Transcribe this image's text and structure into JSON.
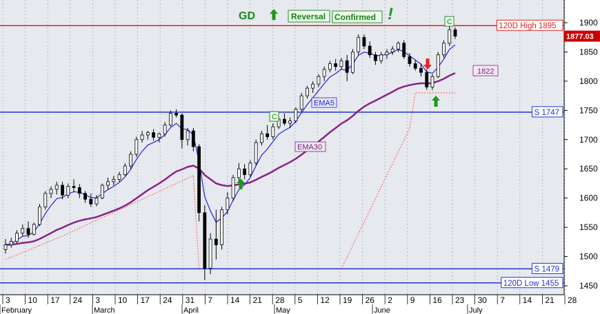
{
  "chart_data": {
    "type": "candlestick",
    "y_axis": {
      "min": 1440,
      "max": 1940,
      "ticks": [
        1450,
        1500,
        1550,
        1600,
        1650,
        1700,
        1750,
        1800,
        1850,
        1900
      ],
      "position": "right"
    },
    "x_axis": {
      "day_ticks": [
        "3",
        "10",
        "17",
        "24",
        "3",
        "10",
        "17",
        "24",
        "31",
        "7",
        "14",
        "21",
        "28",
        "5",
        "12",
        "19",
        "26",
        "2",
        "9",
        "16",
        "23",
        "30",
        "7",
        "14",
        "21",
        "28"
      ],
      "months": [
        "February",
        "March",
        "April",
        "May",
        "June",
        "July"
      ],
      "grid": "vertical dotted"
    },
    "last_price": "1877.03",
    "colors": {
      "up": "#ffffff",
      "down": "#000000",
      "ema5": "#2222dd",
      "ema30": "#882288",
      "stop": "#ff5555",
      "resistance": "#e02020",
      "support": "#2233cc"
    },
    "series": [
      {
        "name": "EMA5",
        "label": "EMA5"
      },
      {
        "name": "EMA30",
        "label": "EMA30"
      }
    ],
    "candles": [
      [
        1512,
        1530,
        1505,
        1520
      ],
      [
        1520,
        1532,
        1515,
        1526
      ],
      [
        1526,
        1545,
        1522,
        1540
      ],
      [
        1540,
        1555,
        1535,
        1548
      ],
      [
        1548,
        1560,
        1532,
        1538
      ],
      [
        1538,
        1558,
        1536,
        1555
      ],
      [
        1555,
        1590,
        1552,
        1585
      ],
      [
        1585,
        1612,
        1580,
        1608
      ],
      [
        1608,
        1620,
        1600,
        1615
      ],
      [
        1615,
        1628,
        1606,
        1622
      ],
      [
        1622,
        1628,
        1598,
        1605
      ],
      [
        1605,
        1625,
        1600,
        1620
      ],
      [
        1620,
        1632,
        1610,
        1618
      ],
      [
        1618,
        1624,
        1600,
        1608
      ],
      [
        1608,
        1612,
        1592,
        1598
      ],
      [
        1598,
        1608,
        1585,
        1590
      ],
      [
        1590,
        1605,
        1586,
        1600
      ],
      [
        1600,
        1625,
        1598,
        1622
      ],
      [
        1622,
        1635,
        1615,
        1628
      ],
      [
        1628,
        1638,
        1622,
        1632
      ],
      [
        1632,
        1645,
        1628,
        1640
      ],
      [
        1640,
        1660,
        1638,
        1655
      ],
      [
        1655,
        1680,
        1650,
        1675
      ],
      [
        1675,
        1705,
        1670,
        1700
      ],
      [
        1700,
        1715,
        1695,
        1708
      ],
      [
        1708,
        1715,
        1700,
        1712
      ],
      [
        1712,
        1718,
        1698,
        1704
      ],
      [
        1704,
        1712,
        1695,
        1710
      ],
      [
        1710,
        1730,
        1705,
        1725
      ],
      [
        1725,
        1750,
        1722,
        1745
      ],
      [
        1745,
        1752,
        1738,
        1742
      ],
      [
        1742,
        1745,
        1685,
        1700
      ],
      [
        1700,
        1720,
        1690,
        1715
      ],
      [
        1715,
        1720,
        1680,
        1688
      ],
      [
        1688,
        1692,
        1560,
        1575
      ],
      [
        1575,
        1588,
        1460,
        1480
      ],
      [
        1480,
        1540,
        1470,
        1530
      ],
      [
        1530,
        1580,
        1495,
        1520
      ],
      [
        1520,
        1585,
        1512,
        1580
      ],
      [
        1580,
        1610,
        1572,
        1600
      ],
      [
        1600,
        1640,
        1595,
        1635
      ],
      [
        1635,
        1660,
        1628,
        1650
      ],
      [
        1650,
        1658,
        1632,
        1640
      ],
      [
        1640,
        1665,
        1636,
        1660
      ],
      [
        1660,
        1700,
        1656,
        1695
      ],
      [
        1695,
        1715,
        1690,
        1710
      ],
      [
        1710,
        1725,
        1700,
        1705
      ],
      [
        1705,
        1728,
        1700,
        1722
      ],
      [
        1722,
        1740,
        1718,
        1735
      ],
      [
        1735,
        1745,
        1724,
        1728
      ],
      [
        1728,
        1738,
        1720,
        1732
      ],
      [
        1732,
        1755,
        1728,
        1752
      ],
      [
        1752,
        1780,
        1748,
        1775
      ],
      [
        1775,
        1792,
        1770,
        1788
      ],
      [
        1788,
        1800,
        1780,
        1795
      ],
      [
        1795,
        1812,
        1790,
        1808
      ],
      [
        1808,
        1825,
        1800,
        1820
      ],
      [
        1820,
        1835,
        1815,
        1830
      ],
      [
        1830,
        1838,
        1818,
        1825
      ],
      [
        1825,
        1840,
        1820,
        1835
      ],
      [
        1835,
        1845,
        1800,
        1815
      ],
      [
        1815,
        1855,
        1812,
        1850
      ],
      [
        1850,
        1880,
        1845,
        1875
      ],
      [
        1875,
        1880,
        1855,
        1860
      ],
      [
        1860,
        1868,
        1840,
        1845
      ],
      [
        1845,
        1850,
        1828,
        1835
      ],
      [
        1835,
        1850,
        1830,
        1845
      ],
      [
        1845,
        1855,
        1838,
        1850
      ],
      [
        1850,
        1860,
        1845,
        1855
      ],
      [
        1855,
        1868,
        1850,
        1865
      ],
      [
        1865,
        1870,
        1838,
        1842
      ],
      [
        1842,
        1848,
        1825,
        1830
      ],
      [
        1830,
        1836,
        1818,
        1822
      ],
      [
        1822,
        1830,
        1808,
        1815
      ],
      [
        1815,
        1820,
        1785,
        1790
      ],
      [
        1790,
        1812,
        1785,
        1808
      ],
      [
        1808,
        1850,
        1805,
        1845
      ],
      [
        1845,
        1870,
        1840,
        1865
      ],
      [
        1865,
        1895,
        1860,
        1888
      ],
      [
        1888,
        1892,
        1872,
        1877
      ]
    ],
    "annotations": {
      "signal_gd": "GD",
      "reversal": "Reversal",
      "confirmed": "Confirmed",
      "exclaim": "!",
      "c_label": "C",
      "ema5_label": "EMA5",
      "ema30_label": "EMA30",
      "value_1822": "1822"
    },
    "levels": [
      {
        "label": "120D High 1895",
        "value": 1895,
        "color": "#e02020"
      },
      {
        "label": "S 1747",
        "value": 1747,
        "color": "#2233cc"
      },
      {
        "label": "S 1479",
        "value": 1479,
        "color": "#2233cc"
      },
      {
        "label": "120D Low 1455",
        "value": 1455,
        "color": "#2233cc"
      }
    ]
  }
}
